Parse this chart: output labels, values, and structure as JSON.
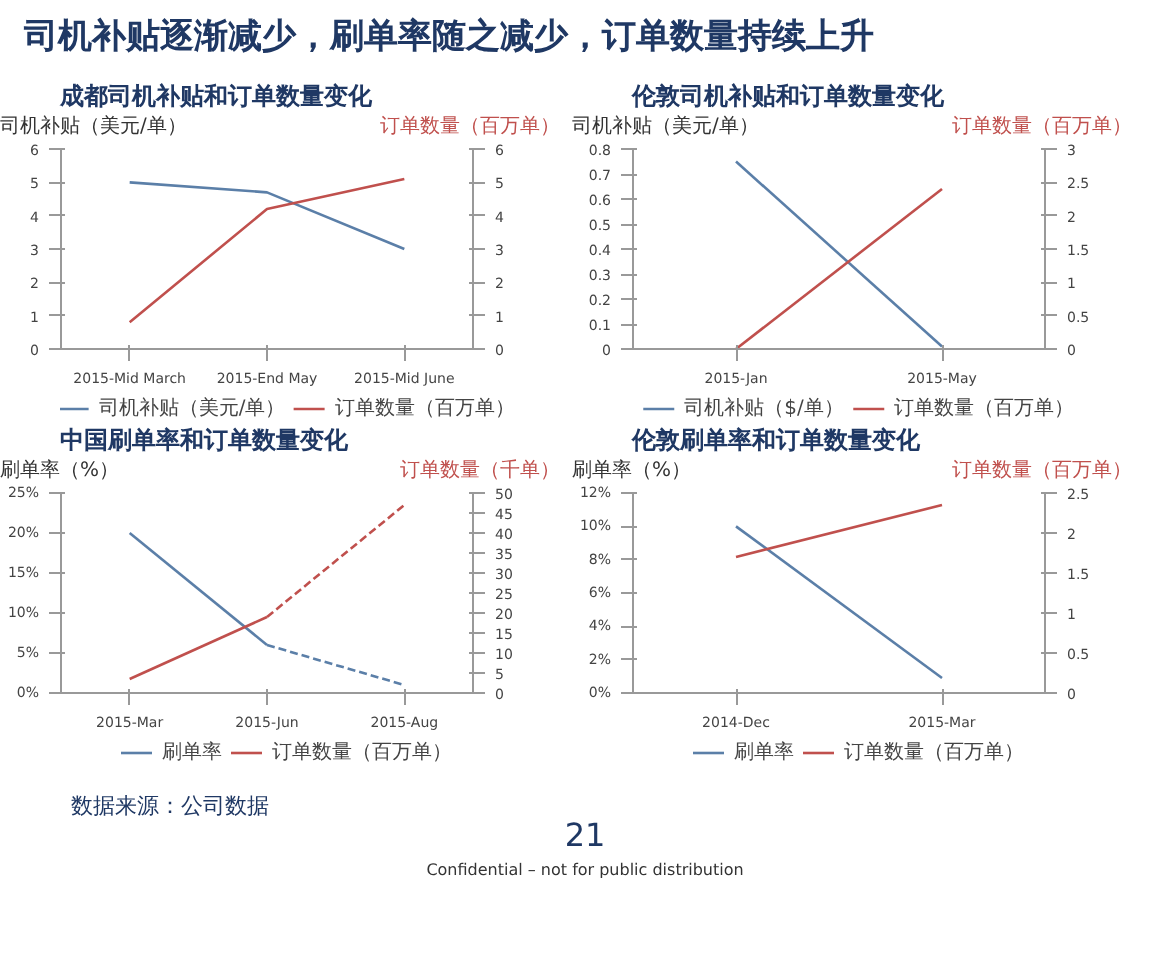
{
  "chart_data": [
    {
      "type": "other",
      "title": "司机补贴逐渐减少，刷单率随之减少，订单数量持续上升"
    },
    {
      "type": "line",
      "title": "成都司机补贴和订单数量变化",
      "ylabel": "司机补贴（美元/单）",
      "y2label": "订单数量（百万单）",
      "categories": [
        "2015-Mid March",
        "2015-End May",
        "2015-Mid June"
      ],
      "ylim": [
        0,
        6
      ],
      "yticks": [
        0,
        1,
        2,
        3,
        4,
        5,
        6
      ],
      "y2lim": [
        0,
        6
      ],
      "y2ticks": [
        0,
        1,
        2,
        3,
        4,
        5,
        6
      ],
      "legend": "bottom",
      "series": [
        {
          "name": "司机补贴（美元/单）",
          "color": "#5b7fa8",
          "values": [
            5,
            4.7,
            3
          ]
        },
        {
          "name": "订单数量（百万单）",
          "color": "#c0504d",
          "axis": "y2",
          "values": [
            0.8,
            4.2,
            5.1
          ]
        }
      ]
    },
    {
      "type": "line",
      "title": "伦敦司机补贴和订单数量变化",
      "ylabel": "司机补贴（美元/单）",
      "y2label": "订单数量（百万单）",
      "categories": [
        "2015-Jan",
        "2015-May"
      ],
      "ylim": [
        0,
        0.8
      ],
      "yticks": [
        0,
        0.1,
        0.2,
        0.3,
        0.4,
        0.5,
        0.6,
        0.7,
        0.8
      ],
      "y2lim": [
        0,
        3
      ],
      "y2ticks": [
        0,
        0.5,
        1,
        1.5,
        2,
        2.5,
        3
      ],
      "legend": "bottom",
      "series": [
        {
          "name": "司机补贴（$/单）",
          "color": "#5b7fa8",
          "values": [
            0.75,
            0.01
          ]
        },
        {
          "name": "订单数量（百万单）",
          "color": "#c0504d",
          "axis": "y2",
          "values": [
            0,
            2.4
          ]
        }
      ]
    },
    {
      "type": "line",
      "title": "中国刷单率和订单数量变化",
      "ylabel": "刷单率（%）",
      "y2label": "订单数量（千单）",
      "categories": [
        "2015-Mar",
        "2015-Jun",
        "2015-Aug"
      ],
      "ylim": [
        0,
        25
      ],
      "yticks": [
        {
          "value": 0,
          "label": "0%"
        },
        {
          "value": 5,
          "label": "5%"
        },
        {
          "value": 10,
          "label": "10%"
        },
        {
          "value": 15,
          "label": "15%"
        },
        {
          "value": 20,
          "label": "20%"
        },
        {
          "value": 25,
          "label": "25%"
        }
      ],
      "y2lim": [
        0,
        50
      ],
      "y2ticks": [
        0,
        5,
        10,
        15,
        20,
        25,
        30,
        35,
        40,
        45,
        50
      ],
      "legend": "bottom",
      "series": [
        {
          "name": "刷单率",
          "color": "#5b7fa8",
          "values": [
            20,
            6,
            null
          ]
        },
        {
          "name": "订单数量（百万单）",
          "color": "#c0504d",
          "axis": "y2",
          "values": [
            3.5,
            19,
            null
          ]
        },
        {
          "color": "#5b7fa8",
          "line_style": "dashed",
          "values": [
            null,
            6,
            1
          ]
        },
        {
          "color": "#c0504d",
          "axis": "y2",
          "line_style": "dashed",
          "values": [
            null,
            19,
            47
          ]
        }
      ]
    },
    {
      "type": "line",
      "title": "伦敦刷单率和订单数量变化",
      "ylabel": "刷单率（%）",
      "y2label": "订单数量（百万单）",
      "categories": [
        "2014-Dec",
        "2015-Mar"
      ],
      "ylim": [
        0,
        12
      ],
      "yticks": [
        {
          "value": 0,
          "label": "0%"
        },
        {
          "value": 2,
          "label": "2%"
        },
        {
          "value": 4,
          "label": "4%"
        },
        {
          "value": 6,
          "label": "6%"
        },
        {
          "value": 8,
          "label": "8%"
        },
        {
          "value": 10,
          "label": "10%"
        },
        {
          "value": 12,
          "label": "12%"
        }
      ],
      "y2lim": [
        0,
        2.5
      ],
      "y2ticks": [
        0,
        0.5,
        1,
        1.5,
        2,
        2.5
      ],
      "legend": "bottom",
      "series": [
        {
          "name": "刷单率",
          "color": "#5b7fa8",
          "values": [
            10,
            0.9
          ]
        },
        {
          "name": "订单数量（百万单）",
          "color": "#c0504d",
          "axis": "y2",
          "values": [
            1.7,
            2.35
          ]
        }
      ]
    },
    {
      "type": "other",
      "annotations": [
        "数据来源：公司数据",
        "21",
        "Confidential – not for public distribution"
      ]
    }
  ]
}
